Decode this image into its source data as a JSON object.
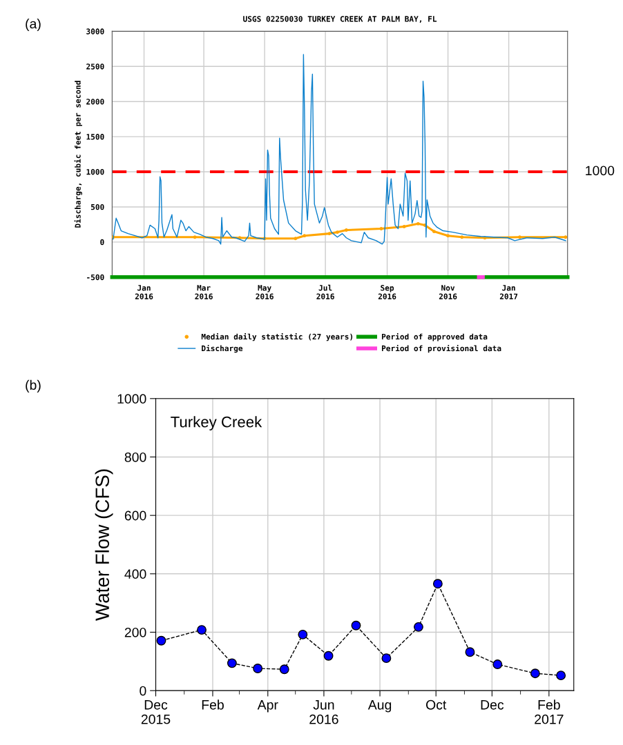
{
  "chart_data": [
    {
      "type": "line",
      "title": "USGS 02250030 TURKEY CREEK AT PALM BAY, FL",
      "ylabel": "Discharge, cubic feet per second",
      "xlim": [
        "2015-11-30",
        "2017-03-01"
      ],
      "xticks": [
        {
          "value": "2016-01-01",
          "label": "Jan\n2016"
        },
        {
          "value": "2016-03-01",
          "label": "Mar\n2016"
        },
        {
          "value": "2016-05-01",
          "label": "May\n2016"
        },
        {
          "value": "2016-07-01",
          "label": "Jul\n2016"
        },
        {
          "value": "2016-09-01",
          "label": "Sep\n2016"
        },
        {
          "value": "2016-11-01",
          "label": "Nov\n2016"
        },
        {
          "value": "2017-01-01",
          "label": "Jan\n2017"
        }
      ],
      "ylim": [
        -500,
        3000
      ],
      "yticks": [
        -500,
        0,
        500,
        1000,
        1500,
        2000,
        2500,
        3000
      ],
      "grid": true,
      "legend": "bottom",
      "ref_lines": [
        {
          "axis": "y",
          "value": 1000,
          "label": "1000",
          "color": "#ff0000",
          "line_style": "dashed"
        }
      ],
      "annotations": [
        "(a)"
      ],
      "series": [
        {
          "name": "Median daily statistic (27 years)",
          "color": "#ffa500",
          "marker": "circle",
          "x": [
            "2015-12-01",
            "2016-02-21",
            "2016-04-06",
            "2016-05-01",
            "2016-06-01",
            "2016-06-10",
            "2016-07-05",
            "2016-07-13",
            "2016-07-22",
            "2016-08-26",
            "2016-09-18",
            "2016-10-02",
            "2016-10-09",
            "2016-10-18",
            "2016-11-01",
            "2016-11-15",
            "2016-12-08",
            "2017-01-12",
            "2017-02-27"
          ],
          "values": [
            70,
            70,
            60,
            50,
            50,
            90,
            120,
            140,
            170,
            190,
            220,
            260,
            240,
            150,
            90,
            70,
            60,
            70,
            70
          ]
        },
        {
          "name": "Discharge",
          "color": "#0a7fcc",
          "marker": "none",
          "x": [
            "2015-12-01",
            "2015-12-04",
            "2015-12-06",
            "2015-12-09",
            "2015-12-16",
            "2015-12-23",
            "2015-12-30",
            "2016-01-04",
            "2016-01-07",
            "2016-01-12",
            "2016-01-15",
            "2016-01-16",
            "2016-01-17",
            "2016-01-18",
            "2016-01-19",
            "2016-01-21",
            "2016-01-24",
            "2016-01-29",
            "2016-01-30",
            "2016-02-03",
            "2016-02-07",
            "2016-02-09",
            "2016-02-12",
            "2016-02-15",
            "2016-02-20",
            "2016-02-26",
            "2016-03-03",
            "2016-03-10",
            "2016-03-16",
            "2016-03-18",
            "2016-03-19",
            "2016-03-20",
            "2016-03-24",
            "2016-03-29",
            "2016-04-02",
            "2016-04-11",
            "2016-04-15",
            "2016-04-16",
            "2016-04-17",
            "2016-04-23",
            "2016-05-01",
            "2016-05-02",
            "2016-05-03",
            "2016-05-04",
            "2016-05-05",
            "2016-05-06",
            "2016-05-07",
            "2016-05-11",
            "2016-05-15",
            "2016-05-16",
            "2016-05-17",
            "2016-05-20",
            "2016-05-25",
            "2016-06-01",
            "2016-06-07",
            "2016-06-08",
            "2016-06-09",
            "2016-06-10",
            "2016-06-11",
            "2016-06-13",
            "2016-06-15",
            "2016-06-17",
            "2016-06-18",
            "2016-06-19",
            "2016-06-20",
            "2016-06-25",
            "2016-06-28",
            "2016-06-30",
            "2016-07-04",
            "2016-07-07",
            "2016-07-13",
            "2016-07-18",
            "2016-07-22",
            "2016-07-27",
            "2016-08-06",
            "2016-08-09",
            "2016-08-13",
            "2016-08-21",
            "2016-08-27",
            "2016-08-29",
            "2016-08-30",
            "2016-09-01",
            "2016-09-02",
            "2016-09-05",
            "2016-09-07",
            "2016-09-09",
            "2016-09-12",
            "2016-09-14",
            "2016-09-17",
            "2016-09-19",
            "2016-09-21",
            "2016-09-22",
            "2016-09-24",
            "2016-09-26",
            "2016-09-29",
            "2016-10-01",
            "2016-10-03",
            "2016-10-05",
            "2016-10-06",
            "2016-10-07",
            "2016-10-08",
            "2016-10-09",
            "2016-10-10",
            "2016-10-11",
            "2016-10-14",
            "2016-10-17",
            "2016-10-21",
            "2016-10-27",
            "2016-11-06",
            "2016-11-20",
            "2016-12-04",
            "2016-12-17",
            "2016-12-31",
            "2017-01-07",
            "2017-01-19",
            "2017-02-04",
            "2017-02-16",
            "2017-02-27"
          ],
          "values": [
            40,
            340,
            270,
            160,
            120,
            90,
            60,
            90,
            240,
            190,
            60,
            310,
            930,
            870,
            270,
            70,
            170,
            390,
            190,
            70,
            310,
            270,
            160,
            220,
            140,
            110,
            70,
            50,
            20,
            -30,
            350,
            70,
            160,
            70,
            60,
            10,
            90,
            270,
            90,
            60,
            40,
            900,
            310,
            1310,
            1230,
            670,
            340,
            190,
            110,
            1480,
            1200,
            600,
            270,
            160,
            110,
            600,
            2670,
            1890,
            740,
            310,
            870,
            2130,
            2390,
            1260,
            540,
            270,
            370,
            490,
            240,
            140,
            70,
            120,
            60,
            20,
            -10,
            140,
            60,
            20,
            -30,
            10,
            270,
            920,
            540,
            900,
            540,
            240,
            190,
            540,
            370,
            980,
            870,
            310,
            870,
            270,
            400,
            590,
            370,
            350,
            440,
            2290,
            2060,
            1400,
            70,
            600,
            370,
            270,
            210,
            160,
            140,
            100,
            80,
            70,
            60,
            20,
            60,
            50,
            70,
            20
          ]
        },
        {
          "name": "Period of approved data",
          "color": "#009900",
          "marker": "none",
          "x": [
            "2015-11-30",
            "2016-07-11",
            "2016-07-12",
            "2016-07-13",
            "2016-12-02",
            "2016-12-04",
            "2016-12-06",
            "2017-03-01"
          ],
          "values": [
            -500,
            -500,
            null,
            -500,
            -500,
            null,
            -500,
            -500
          ]
        },
        {
          "name": "Period of provisional data",
          "color": "#ff44dd",
          "marker": "none",
          "x": [
            "2016-12-02",
            "2016-12-06"
          ],
          "values": [
            -500,
            -500
          ]
        }
      ]
    },
    {
      "type": "line",
      "ylabel": "Water Flow (CFS)",
      "annotations": [
        "Turkey Creek",
        "(b)"
      ],
      "xlim": [
        "2015-12-01",
        "2017-02-28"
      ],
      "xticks": [
        {
          "value": "2015-12-01",
          "label": "Dec\n2015"
        },
        {
          "value": "2016-01-01",
          "label": null
        },
        {
          "value": "2016-02-01",
          "label": "Feb"
        },
        {
          "value": "2016-03-01",
          "label": null
        },
        {
          "value": "2016-04-01",
          "label": "Apr"
        },
        {
          "value": "2016-05-01",
          "label": null
        },
        {
          "value": "2016-06-01",
          "label": "Jun\n2016"
        },
        {
          "value": "2016-07-01",
          "label": null
        },
        {
          "value": "2016-08-01",
          "label": "Aug"
        },
        {
          "value": "2016-09-01",
          "label": null
        },
        {
          "value": "2016-10-01",
          "label": "Oct"
        },
        {
          "value": "2016-11-01",
          "label": null
        },
        {
          "value": "2016-12-01",
          "label": "Dec"
        },
        {
          "value": "2017-01-01",
          "label": null
        },
        {
          "value": "2017-02-01",
          "label": "Feb\n2017"
        }
      ],
      "ylim": [
        0,
        1000
      ],
      "yticks": [
        0,
        200,
        400,
        600,
        800,
        1000
      ],
      "grid": true,
      "marker": "circle",
      "line_style": "dashed",
      "series": [
        {
          "color": "#0000ff",
          "x": [
            "2015-12-07",
            "2016-01-20",
            "2016-02-22",
            "2016-03-21",
            "2016-04-19",
            "2016-05-09",
            "2016-06-06",
            "2016-07-06",
            "2016-08-08",
            "2016-09-12",
            "2016-10-03",
            "2016-11-07",
            "2016-12-07",
            "2017-01-17",
            "2017-02-14"
          ],
          "values": [
            171,
            208,
            94,
            76,
            73,
            192,
            119,
            223,
            111,
            218,
            366,
            132,
            90,
            59,
            52
          ]
        }
      ]
    }
  ]
}
